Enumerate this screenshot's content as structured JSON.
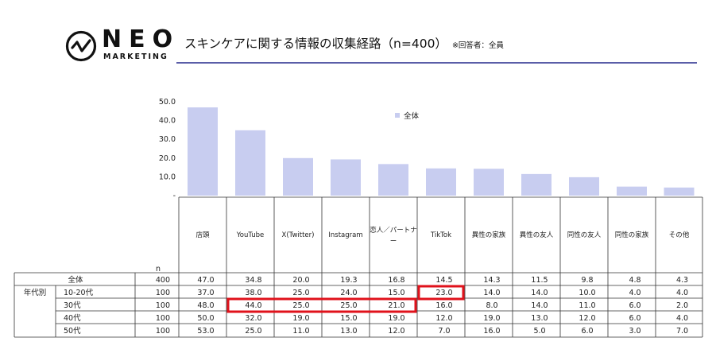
{
  "brand": {
    "name": "NEO",
    "sub": "MARKETING"
  },
  "title": {
    "main": "スキンケアに関する情報の収集経路（n=400）",
    "note": "※回答者：全員"
  },
  "colors": {
    "bar": "#c8cdf0",
    "rule": "#5b5ea8",
    "highlight": "#e0121b"
  },
  "chart_data": {
    "type": "bar",
    "categories": [
      "店頭",
      "YouTube",
      "X(Twitter)",
      "Instagram",
      "恋人／パートナー",
      "TikTok",
      "異性の家族",
      "異性の友人",
      "同性の友人",
      "同性の家族",
      "その他"
    ],
    "series": [
      {
        "name": "全体",
        "values": [
          47.0,
          34.8,
          20.0,
          19.3,
          16.8,
          14.5,
          14.3,
          11.5,
          9.8,
          4.8,
          4.3
        ]
      }
    ],
    "ylim": [
      0,
      50
    ],
    "yticks": [
      "50.0",
      "40.0",
      "30.0",
      "20.0",
      "10.0",
      "-"
    ],
    "legend": "top-center",
    "table": {
      "n_header": "n",
      "group_label": "年代別",
      "rows": [
        {
          "label": "全体",
          "n": "400",
          "values": [
            "47.0",
            "34.8",
            "20.0",
            "19.3",
            "16.8",
            "14.5",
            "14.3",
            "11.5",
            "9.8",
            "4.8",
            "4.3"
          ]
        },
        {
          "label": "10-20代",
          "n": "100",
          "values": [
            "37.0",
            "38.0",
            "25.0",
            "24.0",
            "15.0",
            "23.0",
            "14.0",
            "14.0",
            "10.0",
            "4.0",
            "4.0"
          ]
        },
        {
          "label": "30代",
          "n": "100",
          "values": [
            "48.0",
            "44.0",
            "25.0",
            "25.0",
            "21.0",
            "16.0",
            "8.0",
            "14.0",
            "11.0",
            "6.0",
            "2.0"
          ]
        },
        {
          "label": "40代",
          "n": "100",
          "values": [
            "50.0",
            "32.0",
            "19.0",
            "15.0",
            "19.0",
            "12.0",
            "19.0",
            "13.0",
            "12.0",
            "6.0",
            "4.0"
          ]
        },
        {
          "label": "50代",
          "n": "100",
          "values": [
            "53.0",
            "25.0",
            "11.0",
            "13.0",
            "12.0",
            "7.0",
            "16.0",
            "5.0",
            "6.0",
            "3.0",
            "7.0"
          ]
        }
      ],
      "highlights": [
        {
          "row": 1,
          "from_col": 5,
          "to_col": 5
        },
        {
          "row": 2,
          "from_col": 1,
          "to_col": 4
        }
      ]
    }
  }
}
